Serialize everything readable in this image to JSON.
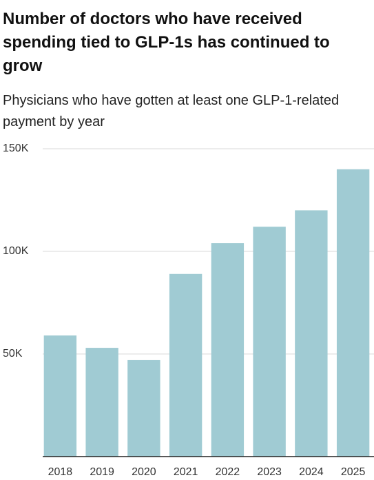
{
  "chart_data": {
    "type": "bar",
    "title": "Number of doctors who have received spending tied to GLP-1s has continued to grow",
    "subtitle": "Physicians who have gotten at least one GLP-1-related payment by year",
    "categories": [
      "2018",
      "2019",
      "2020",
      "2021",
      "2022",
      "2023",
      "2024",
      "2025"
    ],
    "values": [
      59000,
      53000,
      47000,
      89000,
      104000,
      112000,
      120000,
      140000
    ],
    "color": "#a0cbd3",
    "ylim": [
      0,
      150000
    ],
    "yticks": [
      {
        "value": 50000,
        "label": "50K"
      },
      {
        "value": 100000,
        "label": "100K"
      },
      {
        "value": 150000,
        "label": "150K"
      }
    ],
    "grid": true
  }
}
